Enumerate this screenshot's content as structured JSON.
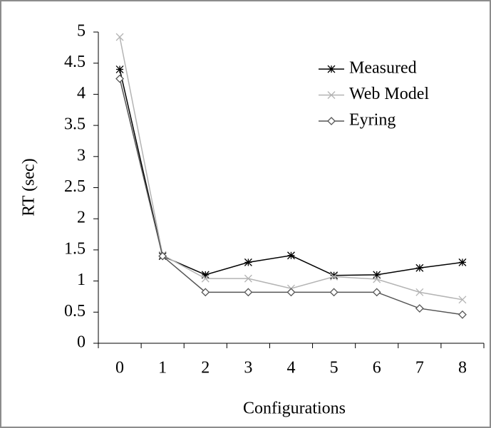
{
  "chart_data": {
    "type": "line",
    "x_label": "Configurations",
    "y_label": "RT (sec)",
    "categories": [
      "0",
      "1",
      "2",
      "3",
      "4",
      "5",
      "6",
      "7",
      "8"
    ],
    "series": [
      {
        "name": "Measured",
        "color": "#000000",
        "marker": "asterisk",
        "values": [
          4.4,
          1.4,
          1.1,
          1.3,
          1.41,
          1.09,
          1.1,
          1.21,
          1.3
        ]
      },
      {
        "name": "Web Model",
        "color": "#b4b4b4",
        "marker": "x",
        "values": [
          4.92,
          1.42,
          1.04,
          1.04,
          0.88,
          1.07,
          1.03,
          0.82,
          0.7
        ]
      },
      {
        "name": "Eyring",
        "color": "#555555",
        "marker": "diamond",
        "values": [
          4.25,
          1.4,
          0.82,
          0.82,
          0.82,
          0.82,
          0.82,
          0.56,
          0.46
        ]
      }
    ],
    "ylim": [
      0,
      5
    ],
    "yticks": [
      0,
      0.5,
      1,
      1.5,
      2,
      2.5,
      3,
      3.5,
      4,
      4.5,
      5
    ],
    "legend": "upper right"
  }
}
